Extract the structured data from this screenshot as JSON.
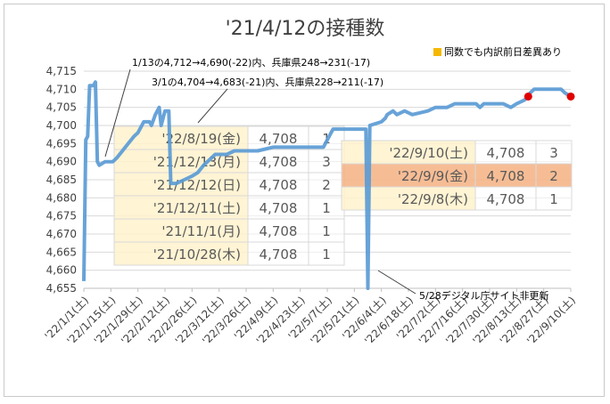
{
  "chart_data": {
    "type": "line",
    "title": "'21/4/12の接種数",
    "legend": [
      "同数でも内訳前日差異あり"
    ],
    "ylim": [
      4655,
      4715
    ],
    "yticks": [
      4655,
      4660,
      4665,
      4670,
      4675,
      4680,
      4685,
      4690,
      4695,
      4700,
      4705,
      4710,
      4715
    ],
    "xlim": [
      "2022-01-01",
      "2022-09-10"
    ],
    "x_tick_dates": [
      "2022-01-01",
      "2022-01-15",
      "2022-01-29",
      "2022-02-12",
      "2022-02-26",
      "2022-03-12",
      "2022-03-26",
      "2022-04-09",
      "2022-04-23",
      "2022-05-07",
      "2022-05-21",
      "2022-06-04",
      "2022-06-18",
      "2022-07-02",
      "2022-07-16",
      "2022-07-30",
      "2022-08-13",
      "2022-08-27",
      "2022-09-10"
    ],
    "x_tick_labels": [
      "'22/1/1(土)",
      "'22/1/15(土)",
      "'22/1/29(土)",
      "'22/2/12(土)",
      "'22/2/26(土)",
      "'22/3/12(土)",
      "'22/3/26(土)",
      "'22/4/9(土)",
      "'22/4/23(土)",
      "'22/5/7(土)",
      "'22/5/21(土)",
      "'22/6/4(土)",
      "'22/6/18(土)",
      "'22/7/2(土)",
      "'22/7/16(土)",
      "'22/7/30(土)",
      "'22/8/13(土)",
      "'22/8/27(土)",
      "'22/9/10(土)"
    ],
    "series": [
      {
        "color": "#5b9bd5",
        "points": [
          [
            "2022-01-01",
            4657
          ],
          [
            "2022-01-02",
            4696
          ],
          [
            "2022-01-03",
            4697
          ],
          [
            "2022-01-04",
            4711
          ],
          [
            "2022-01-06",
            4711
          ],
          [
            "2022-01-07",
            4712
          ],
          [
            "2022-01-08",
            4690
          ],
          [
            "2022-01-09",
            4689
          ],
          [
            "2022-01-12",
            4690
          ],
          [
            "2022-01-13",
            4690
          ],
          [
            "2022-01-16",
            4690
          ],
          [
            "2022-01-18",
            4691
          ],
          [
            "2022-01-21",
            4693
          ],
          [
            "2022-01-24",
            4695
          ],
          [
            "2022-01-27",
            4697
          ],
          [
            "2022-01-29",
            4698
          ],
          [
            "2022-02-01",
            4701
          ],
          [
            "2022-02-04",
            4701
          ],
          [
            "2022-02-05",
            4700
          ],
          [
            "2022-02-07",
            4703
          ],
          [
            "2022-02-09",
            4705
          ],
          [
            "2022-02-10",
            4700
          ],
          [
            "2022-02-12",
            4704
          ],
          [
            "2022-02-14",
            4704
          ],
          [
            "2022-02-15",
            4684
          ],
          [
            "2022-02-18",
            4684
          ],
          [
            "2022-02-22",
            4685
          ],
          [
            "2022-02-26",
            4686
          ],
          [
            "2022-03-01",
            4687
          ],
          [
            "2022-03-04",
            4689
          ],
          [
            "2022-03-08",
            4691
          ],
          [
            "2022-03-10",
            4692
          ],
          [
            "2022-03-16",
            4692
          ],
          [
            "2022-03-20",
            4693
          ],
          [
            "2022-03-26",
            4693
          ],
          [
            "2022-04-01",
            4693
          ],
          [
            "2022-04-09",
            4694
          ],
          [
            "2022-04-20",
            4694
          ],
          [
            "2022-05-01",
            4694
          ],
          [
            "2022-05-05",
            4694
          ],
          [
            "2022-05-06",
            4695
          ],
          [
            "2022-05-09",
            4698
          ],
          [
            "2022-05-10",
            4699
          ],
          [
            "2022-05-27",
            4699
          ],
          [
            "2022-05-28",
            4655
          ],
          [
            "2022-05-29",
            4700
          ],
          [
            "2022-06-04",
            4701
          ],
          [
            "2022-06-06",
            4702
          ],
          [
            "2022-06-07",
            4703
          ],
          [
            "2022-06-10",
            4704
          ],
          [
            "2022-06-12",
            4703
          ],
          [
            "2022-06-16",
            4704
          ],
          [
            "2022-06-20",
            4703
          ],
          [
            "2022-06-28",
            4704
          ],
          [
            "2022-07-02",
            4705
          ],
          [
            "2022-07-08",
            4705
          ],
          [
            "2022-07-12",
            4706
          ],
          [
            "2022-07-23",
            4706
          ],
          [
            "2022-07-25",
            4705
          ],
          [
            "2022-07-27",
            4706
          ],
          [
            "2022-08-06",
            4706
          ],
          [
            "2022-08-10",
            4705
          ],
          [
            "2022-08-13",
            4706
          ],
          [
            "2022-08-17",
            4707
          ],
          [
            "2022-08-19",
            4708
          ],
          [
            "2022-08-20",
            4709
          ],
          [
            "2022-08-22",
            4710
          ],
          [
            "2022-09-05",
            4710
          ],
          [
            "2022-09-07",
            4709
          ],
          [
            "2022-09-10",
            4708
          ]
        ]
      }
    ],
    "highlight_points": [
      [
        "2022-08-19",
        4708
      ],
      [
        "2022-09-10",
        4708
      ]
    ],
    "annotations": [
      {
        "text": "1/13の4,712→4,690(-22)内、兵庫県248→231(-17)",
        "date": "2022-01-13",
        "value": 4690
      },
      {
        "text": "3/1の4,704→4,683(-21)内、兵庫県228→211(-17)",
        "date": "2022-03-01",
        "value": 4687
      },
      {
        "text": "5/28デジタル庁サイト非更新",
        "date": "2022-05-28",
        "value": 4655
      }
    ],
    "tables": [
      {
        "name": "table-left",
        "rows": [
          {
            "date": "'22/8/19(金)",
            "value": "4,708",
            "count": "1",
            "highlight": false
          },
          {
            "date": "'21/12/13(月)",
            "value": "4,708",
            "count": "3",
            "highlight": false
          },
          {
            "date": "'21/12/12(日)",
            "value": "4,708",
            "count": "2",
            "highlight": false
          },
          {
            "date": "'21/12/11(土)",
            "value": "4,708",
            "count": "1",
            "highlight": false
          },
          {
            "date": "'21/11/1(月)",
            "value": "4,708",
            "count": "1",
            "highlight": false
          },
          {
            "date": "'21/10/28(木)",
            "value": "4,708",
            "count": "1",
            "highlight": false
          }
        ]
      },
      {
        "name": "table-right",
        "rows": [
          {
            "date": "'22/9/10(土)",
            "value": "4,708",
            "count": "3",
            "highlight": false
          },
          {
            "date": "'22/9/9(金)",
            "value": "4,708",
            "count": "2",
            "highlight": true
          },
          {
            "date": "'22/9/8(木)",
            "value": "4,708",
            "count": "1",
            "highlight": false
          }
        ]
      }
    ],
    "colors": {
      "line": "#5b9bd5",
      "marker": "#e00000",
      "grid": "#d9d9d9",
      "cell_fill": "#fff2cc",
      "cell_fill_highlight": "#f4b183"
    }
  }
}
